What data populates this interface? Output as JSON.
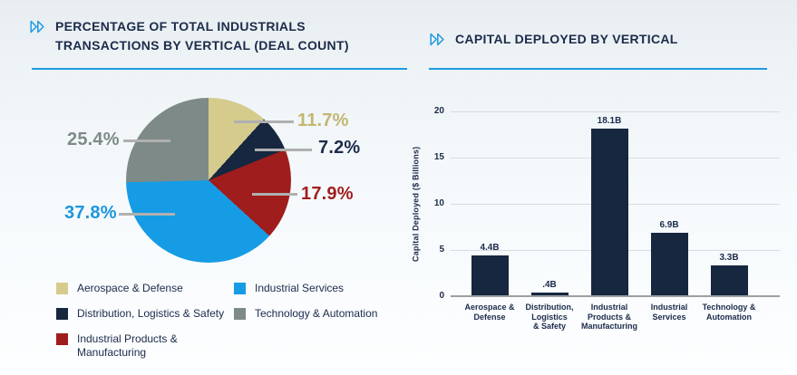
{
  "colors": {
    "accent_blue": "#1e9ae0",
    "text_navy": "#1b2b4a",
    "leader_gray": "#b0b0b0"
  },
  "left_chart": {
    "title_line1": "PERCENTAGE OF TOTAL INDUSTRIALS",
    "title_line2": "TRANSACTIONS BY VERTICAL (DEAL COUNT)"
  },
  "right_chart": {
    "title": "CAPITAL DEPLOYED BY VERTICAL"
  },
  "chart_data": [
    {
      "type": "pie",
      "title": "PERCENTAGE OF TOTAL INDUSTRIALS TRANSACTIONS BY VERTICAL (DEAL COUNT)",
      "categories": [
        "Aerospace & Defense",
        "Distribution, Logistics & Safety",
        "Industrial Products & Manufacturing",
        "Industrial Services",
        "Technology & Automation"
      ],
      "values": [
        11.7,
        7.2,
        17.9,
        37.8,
        25.4
      ],
      "value_labels": [
        "11.7%",
        "7.2%",
        "17.9%",
        "37.8%",
        "25.4%"
      ],
      "colors": [
        "#d5cb8d",
        "#16273f",
        "#9f1d1d",
        "#169ce4",
        "#7e8a87"
      ],
      "label_colors": [
        "#c2b672",
        "#1b2b4a",
        "#a21e1e",
        "#1b96de",
        "#7d8a88"
      ],
      "legend_labels": [
        "Aerospace & Defense",
        "Distribution, Logistics & Safety",
        "Industrial Products &\nManufacturing",
        "Industrial Services",
        "Technology & Automation"
      ],
      "start_angle_deg": 0,
      "direction": "clockwise",
      "legend_position": "bottom"
    },
    {
      "type": "bar",
      "title": "CAPITAL DEPLOYED BY VERTICAL",
      "categories": [
        "Aerospace & Defense",
        "Distribution, Logistics & Safety",
        "Industrial Products & Manufacturing",
        "Industrial Services",
        "Technology & Automation"
      ],
      "category_labels": [
        "Aerospace &\nDefense",
        "Distribution,\nLogistics\n& Safety",
        "Industrial\nProducts &\nManufacturing",
        "Industrial\nServices",
        "Technology &\nAutomation"
      ],
      "values": [
        4.4,
        0.4,
        18.1,
        6.9,
        3.3
      ],
      "bar_labels": [
        "4.4B",
        ".4B",
        "18.1B",
        "6.9B",
        "3.3B"
      ],
      "xlabel": "",
      "ylabel": "Capital Deployed ($ Billions)",
      "ylim": [
        0,
        20
      ],
      "yticks": [
        0,
        5,
        10,
        15,
        20
      ],
      "bar_color": "#16273f",
      "grid": true
    }
  ]
}
